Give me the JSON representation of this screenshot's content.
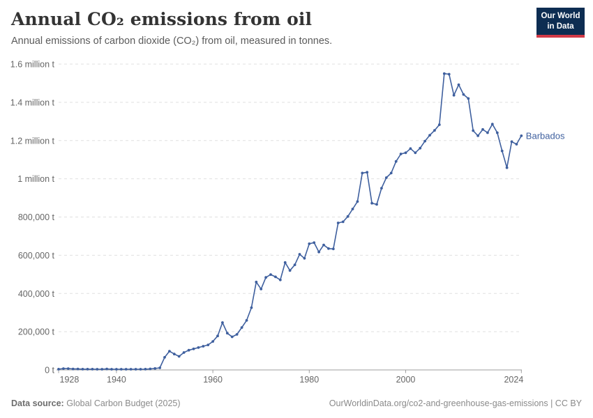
{
  "header": {
    "title": "Annual CO₂ emissions from oil",
    "subtitle": "Annual emissions of carbon dioxide (CO₂) from oil, measured in tonnes.",
    "logo": {
      "line1": "Our World",
      "line2": "in Data"
    }
  },
  "footer": {
    "source_label": "Data source:",
    "source_value": "Global Carbon Budget (2025)",
    "credit": "OurWorldinData.org/co2-and-greenhouse-gas-emissions | CC BY"
  },
  "colors": {
    "line": "#3e5f9e",
    "grid": "#e0e0e0",
    "axis": "#9d9d9d",
    "tick_text": "#666666",
    "logo_bg": "#0d2d52",
    "logo_bar": "#d23a47"
  },
  "chart_data": {
    "type": "line",
    "title": "Annual CO₂ emissions from oil",
    "xlabel": "",
    "ylabel": "",
    "grid": true,
    "legend_position": "end-of-line-label",
    "xlim": [
      1928,
      2024
    ],
    "ylim": [
      0,
      1600000
    ],
    "x_ticks": [
      {
        "value": 1928,
        "label": "1928"
      },
      {
        "value": 1940,
        "label": "1940"
      },
      {
        "value": 1960,
        "label": "1960"
      },
      {
        "value": 1980,
        "label": "1980"
      },
      {
        "value": 2000,
        "label": "2000"
      },
      {
        "value": 2024,
        "label": "2024"
      }
    ],
    "y_ticks": [
      {
        "value": 0,
        "label": "0 t"
      },
      {
        "value": 200000,
        "label": "200,000 t"
      },
      {
        "value": 400000,
        "label": "400,000 t"
      },
      {
        "value": 600000,
        "label": "600,000 t"
      },
      {
        "value": 800000,
        "label": "800,000 t"
      },
      {
        "value": 1000000,
        "label": "1 million t"
      },
      {
        "value": 1200000,
        "label": "1.2 million t"
      },
      {
        "value": 1400000,
        "label": "1.4 million t"
      },
      {
        "value": 1600000,
        "label": "1.6 million t"
      }
    ],
    "series": [
      {
        "name": "Barbados",
        "color": "#3e5f9e",
        "x": [
          1928,
          1929,
          1930,
          1931,
          1932,
          1933,
          1934,
          1935,
          1936,
          1937,
          1938,
          1939,
          1940,
          1941,
          1942,
          1943,
          1944,
          1945,
          1946,
          1947,
          1948,
          1949,
          1950,
          1951,
          1952,
          1953,
          1954,
          1955,
          1956,
          1957,
          1958,
          1959,
          1960,
          1961,
          1962,
          1963,
          1964,
          1965,
          1966,
          1967,
          1968,
          1969,
          1970,
          1971,
          1972,
          1973,
          1974,
          1975,
          1976,
          1977,
          1978,
          1979,
          1980,
          1981,
          1982,
          1983,
          1984,
          1985,
          1986,
          1987,
          1988,
          1989,
          1990,
          1991,
          1992,
          1993,
          1994,
          1995,
          1996,
          1997,
          1998,
          1999,
          2000,
          2001,
          2002,
          2003,
          2004,
          2005,
          2006,
          2007,
          2008,
          2009,
          2010,
          2011,
          2012,
          2013,
          2014,
          2015,
          2016,
          2017,
          2018,
          2019,
          2020,
          2021,
          2022,
          2023,
          2024
        ],
        "values": [
          4000,
          7000,
          7000,
          5000,
          5000,
          4000,
          4000,
          4000,
          3500,
          3500,
          5000,
          3500,
          3500,
          3500,
          3500,
          3500,
          3500,
          3500,
          4000,
          5500,
          7500,
          11000,
          66000,
          98000,
          83000,
          71000,
          91000,
          103000,
          110000,
          117000,
          124000,
          131000,
          149000,
          178000,
          248000,
          192000,
          173000,
          186000,
          222000,
          259000,
          326000,
          460000,
          423000,
          484000,
          499000,
          487000,
          471000,
          562000,
          520000,
          550000,
          605000,
          584000,
          660000,
          666000,
          617000,
          654000,
          635000,
          633000,
          769000,
          775000,
          803000,
          842000,
          881000,
          1030000,
          1034000,
          872000,
          866000,
          951000,
          1006000,
          1030000,
          1091000,
          1130000,
          1136000,
          1158000,
          1136000,
          1160000,
          1197000,
          1228000,
          1253000,
          1283000,
          1550000,
          1547000,
          1437000,
          1492000,
          1441000,
          1420000,
          1252000,
          1225000,
          1258000,
          1241000,
          1286000,
          1241000,
          1146000,
          1058000,
          1194000,
          1181000,
          1225000
        ]
      }
    ]
  }
}
